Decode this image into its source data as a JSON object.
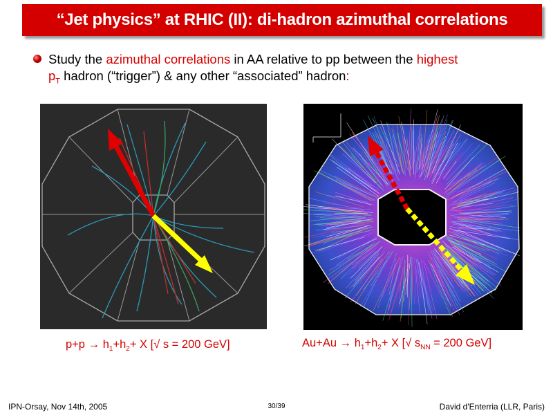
{
  "title": "“Jet physics” at RHIC (II): di-hadron azimuthal correlations",
  "bullet": {
    "t1": "Study the ",
    "t2": "azimuthal correlations",
    "t3": " in AA relative to pp between the ",
    "t4": "highest",
    "t5": "p",
    "t5_sub": "T",
    "t6": " hadron (“trigger”) & any other “associated” hadron",
    "t7": ":"
  },
  "captions": {
    "pp": {
      "a": "p+p",
      "arrow": "→",
      "b": "h",
      "b1": "1",
      "c": "+h",
      "c2": "2",
      "d": "+ X  [√ s = 200 GeV]"
    },
    "auau": {
      "a": "Au+Au",
      "arrow": "→",
      "b": "h",
      "b1": "1",
      "c": "+h",
      "c2": "2",
      "d": "+ X [√ s",
      "dsub": "NN",
      "e": " = 200 GeV]"
    }
  },
  "footer": {
    "left": "IPN-Orsay, Nov 14th, 2005",
    "center": "30/39",
    "right": "David d'Enterria (LLR, Paris)"
  },
  "colors": {
    "title_bg": "#d40000",
    "accent": "#d40000",
    "trigger": "#e00000",
    "associated": "#ffff00"
  }
}
